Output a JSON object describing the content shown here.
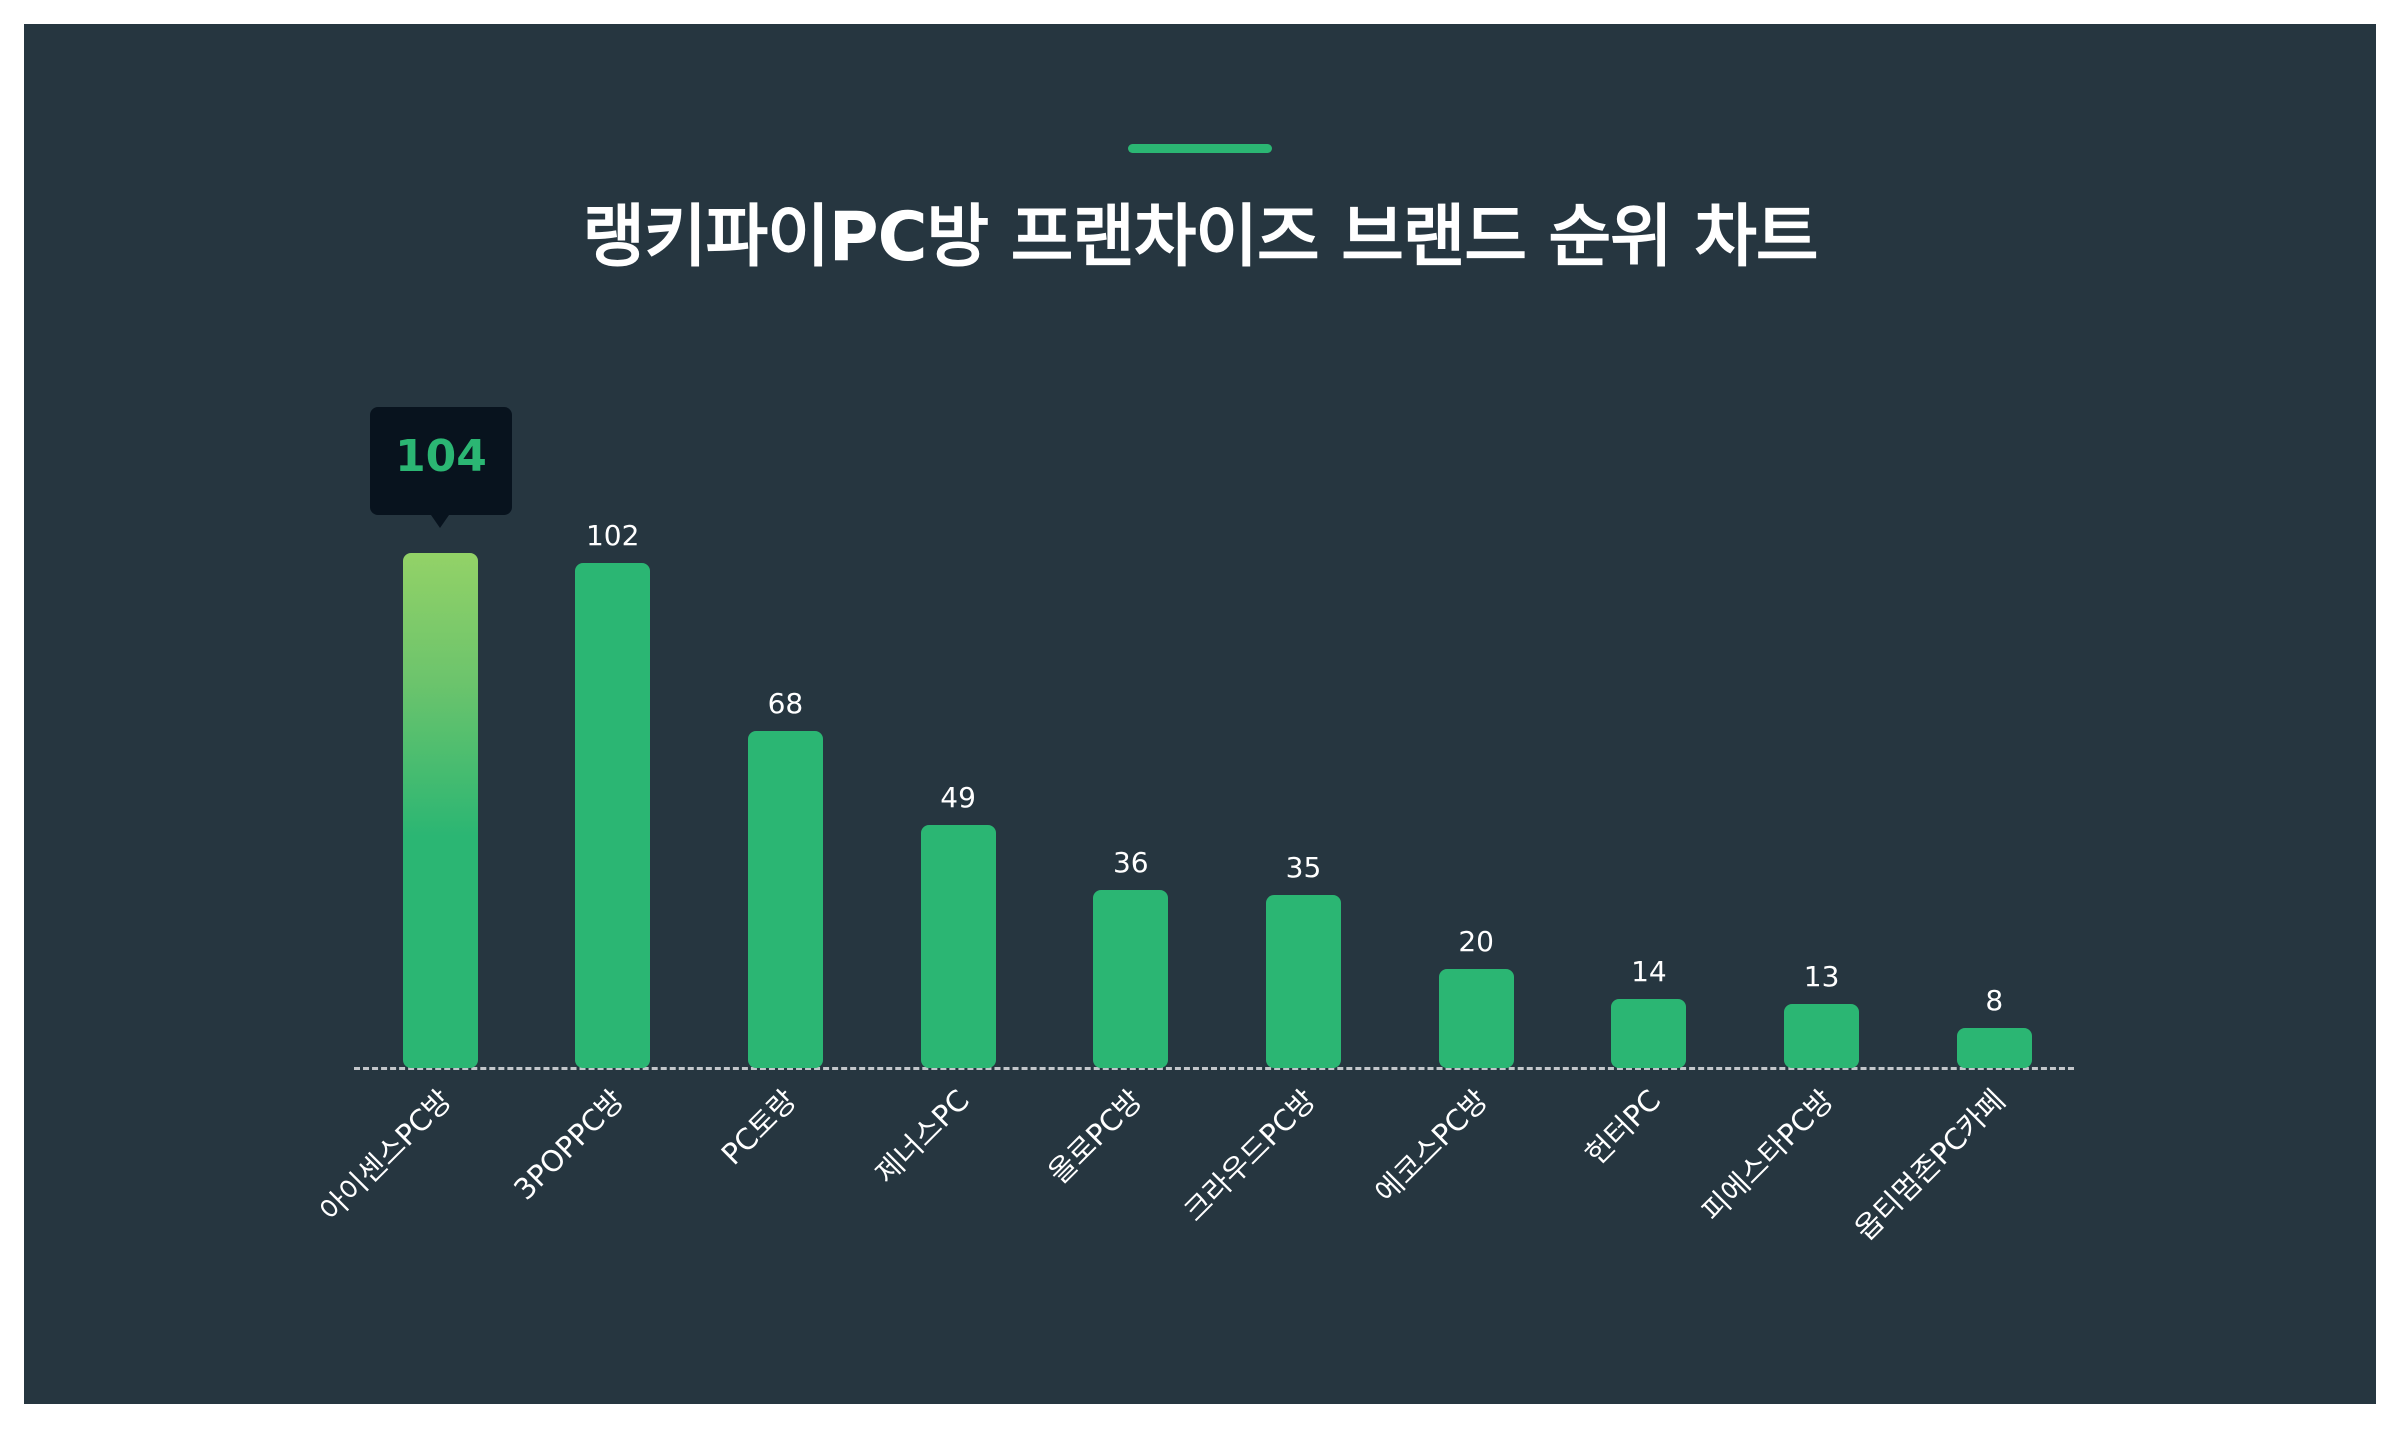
{
  "title": "랭키파이PC방 프랜차이즈 브랜드 순위 차트",
  "colors": {
    "background": "#263640",
    "bar": "#2bb673",
    "bar_highlight_top": "#93d267",
    "tooltip_bg": "#08131e",
    "tooltip_text": "#2bb673",
    "accent": "#2bb673"
  },
  "tooltip": {
    "value": "104"
  },
  "chart_data": {
    "type": "bar",
    "title": "랭키파이PC방 프랜차이즈 브랜드 순위 차트",
    "categories": [
      "아이센스PC방",
      "3POPPC방",
      "PC토랑",
      "제너스PC",
      "올로PC방",
      "크라우드PC방",
      "에코스PC방",
      "헌터PC",
      "피에스타PC방",
      "옵티멈존PC카페"
    ],
    "values": [
      104,
      102,
      68,
      49,
      36,
      35,
      20,
      14,
      13,
      8
    ],
    "value_labels": [
      "104",
      "102",
      "68",
      "49",
      "36",
      "35",
      "20",
      "14",
      "13",
      "8"
    ],
    "xlabel": "",
    "ylabel": "",
    "ylim": [
      0,
      104
    ],
    "grid": false,
    "legend": null,
    "highlight_index": 0,
    "x_tick_rotation": -45
  }
}
